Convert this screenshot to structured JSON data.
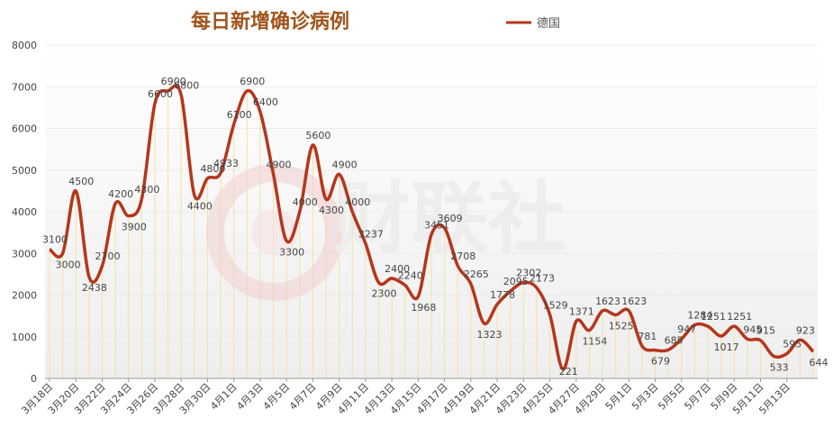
{
  "chart_data": {
    "type": "line",
    "title": "每日新增确诊病例",
    "legend": [
      "德国"
    ],
    "legend_position": "top-right",
    "series": [
      {
        "name": "德国",
        "color": "#b5361c",
        "values": [
          3100,
          3000,
          4500,
          2438,
          2700,
          4200,
          3900,
          4300,
          6600,
          6900,
          6800,
          4400,
          4800,
          4933,
          6100,
          6900,
          6400,
          4900,
          3300,
          4000,
          5600,
          4300,
          4900,
          4000,
          3237,
          2300,
          2400,
          2240,
          1968,
          3451,
          3609,
          2708,
          2265,
          1323,
          1778,
          2095,
          2302,
          2173,
          1529,
          221,
          1371,
          1154,
          1623,
          1525,
          1623,
          781,
          679,
          685,
          947,
          1284,
          1251,
          1017,
          1251,
          945,
          915,
          533,
          595,
          923,
          644
        ]
      }
    ],
    "data_labels": [
      "3100",
      "3000",
      "4500",
      "2438",
      "2700",
      "4200",
      "3900",
      "4300",
      "6600",
      "6900",
      "6800",
      "4400",
      "4800",
      "4933",
      "6100",
      "6900",
      "6400",
      "4900",
      "3300",
      "4000",
      "5600",
      "4300",
      "4900",
      "4000",
      "3237",
      "2300",
      "2400",
      "2240",
      "1968",
      "3451",
      "3609",
      "2708",
      "2265",
      "1323",
      "1778",
      "2095",
      "2302",
      "2173",
      "1529",
      "221",
      "1371",
      "1154",
      "1623",
      "1525",
      "1623",
      "781",
      "679",
      "685",
      "947",
      "1284",
      "1251",
      "1017",
      "1251",
      "945",
      "915",
      "533",
      "595",
      "923",
      "644"
    ],
    "x_tick_labels": [
      "3月18日",
      "3月20日",
      "3月22日",
      "3月24日",
      "3月26日",
      "3月28日",
      "3月30日",
      "4月1日",
      "4月3日",
      "4月5日",
      "4月7日",
      "4月9日",
      "4月11日",
      "4月13日",
      "4月15日",
      "4月17日",
      "4月19日",
      "4月21日",
      "4月23日",
      "4月25日",
      "4月27日",
      "4月29日",
      "5月1日",
      "5月3日",
      "5月5日",
      "5月7日",
      "5月9日",
      "5月11日",
      "5月13日"
    ],
    "y_ticks": [
      "0",
      "1000",
      "2000",
      "3000",
      "4000",
      "5000",
      "6000",
      "7000",
      "8000"
    ],
    "ylim": [
      0,
      8000
    ],
    "grid": true,
    "watermark": "财联社"
  }
}
